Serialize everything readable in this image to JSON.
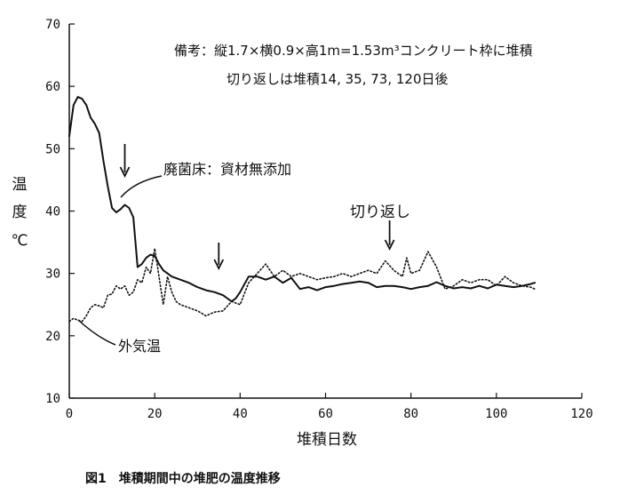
{
  "chart_data": {
    "type": "line",
    "title": "",
    "xlabel": "堆積日数",
    "ylabel_lines": [
      "温",
      "度",
      "℃"
    ],
    "xlim": [
      0,
      120
    ],
    "ylim": [
      10,
      70
    ],
    "x_ticks": [
      0,
      20,
      40,
      60,
      80,
      100,
      120
    ],
    "y_ticks": [
      10,
      20,
      30,
      40,
      50,
      60,
      70
    ],
    "grid": false,
    "note_lines": [
      "備考：縦1.7×横0.9×高1m=1.53m³コンクリート枠に堆積",
      "切り返しは堆積14, 35, 73, 120日後"
    ],
    "caption": "図1　堆積期間中の堆肥の温度推移",
    "annotations": [
      {
        "text": "廃菌床：資材無添加",
        "series": 0
      },
      {
        "text": "外気温",
        "series": 1
      },
      {
        "text": "切り返し",
        "arrows_at_day": [
          13,
          35,
          75
        ]
      }
    ],
    "series": [
      {
        "name": "廃菌床：資材無添加",
        "style": "solid",
        "color": "#111111",
        "x": [
          0,
          1,
          2,
          3,
          4,
          5,
          6,
          7,
          8,
          9,
          10,
          11,
          12,
          13,
          14,
          15,
          16,
          17,
          18,
          19,
          20,
          21,
          22,
          24,
          26,
          28,
          30,
          32,
          34,
          36,
          38,
          39,
          40,
          42,
          44,
          46,
          48,
          50,
          52,
          54,
          56,
          58,
          60,
          62,
          64,
          66,
          68,
          70,
          72,
          74,
          76,
          78,
          80,
          82,
          84,
          86,
          88,
          90,
          92,
          94,
          96,
          98,
          100,
          102,
          104,
          106,
          108,
          109
        ],
        "y": [
          52,
          57,
          58.3,
          58,
          57,
          55,
          54,
          52.5,
          48,
          44,
          40.5,
          39.8,
          40.3,
          41,
          40.5,
          39,
          31,
          31.5,
          32.5,
          33,
          32.8,
          31.5,
          30.5,
          29.5,
          29,
          28.5,
          27.8,
          27.3,
          27,
          26.5,
          25.5,
          26,
          27,
          29.5,
          29.5,
          29,
          29.5,
          28.5,
          29.3,
          27.5,
          27.8,
          27.3,
          27.8,
          28,
          28.3,
          28.5,
          28.7,
          28.5,
          27.8,
          28,
          28,
          27.8,
          27.5,
          27.8,
          28,
          28.6,
          28,
          27.6,
          27.8,
          27.6,
          28,
          27.6,
          28.2,
          28,
          27.8,
          28,
          28.3,
          28.5
        ]
      },
      {
        "name": "外気温",
        "style": "dotted",
        "color": "#111111",
        "x": [
          0,
          1,
          2,
          3,
          4,
          5,
          6,
          7,
          8,
          9,
          10,
          11,
          12,
          13,
          14,
          15,
          16,
          17,
          18,
          19,
          20,
          21,
          22,
          23,
          24,
          25,
          26,
          28,
          30,
          32,
          34,
          36,
          38,
          40,
          42,
          44,
          46,
          48,
          50,
          52,
          54,
          56,
          58,
          60,
          62,
          64,
          66,
          68,
          70,
          72,
          74,
          76,
          78,
          79,
          80,
          82,
          84,
          86,
          88,
          90,
          92,
          94,
          96,
          98,
          100,
          102,
          104,
          106,
          108,
          109
        ],
        "y": [
          22.3,
          22.8,
          22.5,
          22.3,
          23.2,
          24.5,
          25,
          24.8,
          24.5,
          26.5,
          26.7,
          28,
          27.5,
          28,
          26.5,
          27,
          29,
          28.5,
          31,
          30,
          34,
          29.5,
          25,
          29.5,
          27,
          25.5,
          25,
          24.5,
          24,
          23.2,
          23.8,
          24,
          25.5,
          25,
          28.5,
          30,
          31.5,
          29.5,
          30.5,
          29.5,
          30,
          29.5,
          29,
          29.3,
          29.5,
          30,
          29.5,
          30,
          30.5,
          30,
          32,
          30.5,
          29.5,
          32.5,
          30,
          30.5,
          33.5,
          31,
          27.5,
          28,
          29,
          28.5,
          29,
          29,
          28,
          29.5,
          28.5,
          28,
          27.8,
          27.5
        ]
      }
    ]
  }
}
